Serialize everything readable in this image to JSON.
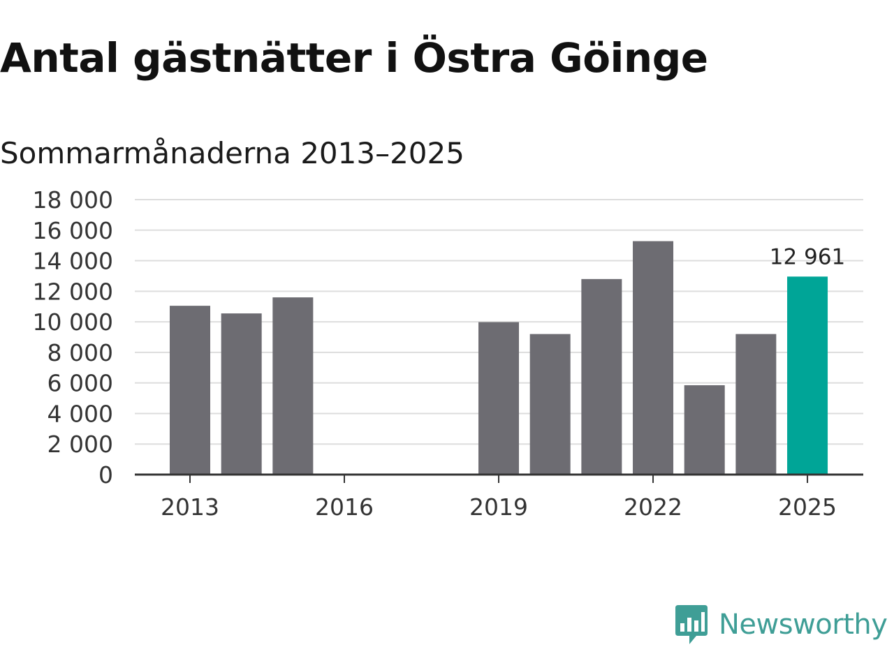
{
  "title": "Antal gästnätter i Östra Göinge",
  "subtitle": "Sommarmånaderna 2013–2025",
  "chart_data": {
    "type": "bar",
    "categories": [
      2013,
      2014,
      2015,
      2016,
      2017,
      2018,
      2019,
      2020,
      2021,
      2022,
      2023,
      2024,
      2025
    ],
    "values": [
      11050,
      10550,
      11600,
      null,
      null,
      null,
      9980,
      9200,
      12800,
      15280,
      5850,
      9200,
      12961
    ],
    "x_tick_labels": [
      "2013",
      "2016",
      "2019",
      "2022",
      "2025"
    ],
    "x_tick_values": [
      2013,
      2016,
      2019,
      2022,
      2025
    ],
    "y_tick_labels": [
      "0",
      "2 000",
      "4 000",
      "6 000",
      "8 000",
      "10 000",
      "12 000",
      "14 000",
      "16 000",
      "18 000"
    ],
    "y_tick_values": [
      0,
      2000,
      4000,
      6000,
      8000,
      10000,
      12000,
      14000,
      16000,
      18000
    ],
    "ylim": [
      0,
      18000
    ],
    "grid": true,
    "bar_color": "#6d6c72",
    "highlight_color": "#00a597",
    "highlight_category": 2025,
    "data_label": {
      "category": 2025,
      "text": "12 961"
    }
  },
  "logo": {
    "text": "Newsworthy",
    "color": "#3f9e96"
  }
}
